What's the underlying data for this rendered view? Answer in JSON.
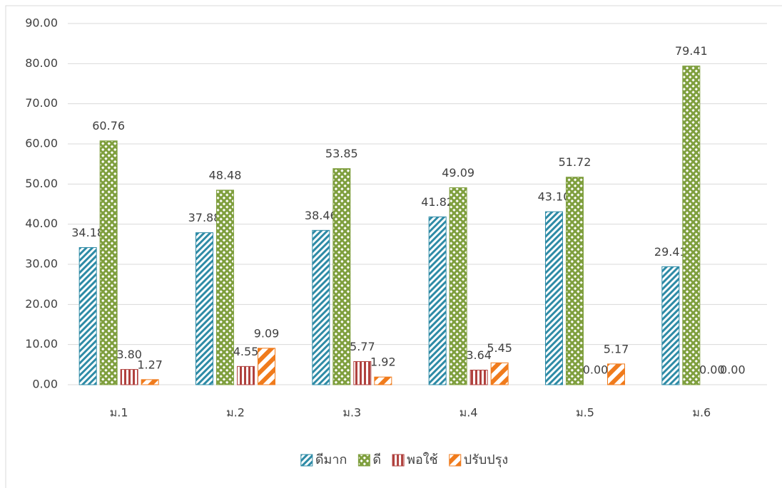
{
  "chart_data": {
    "type": "bar",
    "categories": [
      "ม.1",
      "ม.2",
      "ม.3",
      "ม.4",
      "ม.5",
      "ม.6"
    ],
    "series": [
      {
        "name": "ดีมาก",
        "color": "#2e8ba6",
        "values": [
          34.18,
          37.88,
          38.46,
          41.82,
          43.1,
          29.41
        ],
        "value_labels": [
          "34.18",
          "37.88",
          "38.46",
          "41.82",
          "43.10",
          "29.41"
        ]
      },
      {
        "name": "ดี",
        "color": "#7f9f3e",
        "values": [
          60.76,
          48.48,
          53.85,
          49.09,
          51.72,
          79.41
        ],
        "value_labels": [
          "60.76",
          "48.48",
          "53.85",
          "49.09",
          "51.72",
          "79.41"
        ]
      },
      {
        "name": "พอใช้",
        "color": "#b0413e",
        "values": [
          3.8,
          4.55,
          5.77,
          3.64,
          0,
          0
        ],
        "value_labels": [
          "3.80",
          "4.55",
          "5.77",
          "3.64",
          "0.00",
          "0.00"
        ]
      },
      {
        "name": "ปรับปรุง",
        "color": "#f07b1c",
        "values": [
          1.27,
          9.09,
          1.92,
          5.45,
          5.17,
          0
        ],
        "value_labels": [
          "1.27",
          "9.09",
          "1.92",
          "5.45",
          "5.17",
          "0.00"
        ]
      }
    ],
    "ylim": [
      0,
      90
    ],
    "yticks": [
      {
        "value": 0,
        "label": "0.00"
      },
      {
        "value": 10,
        "label": "10.00"
      },
      {
        "value": 20,
        "label": "20.00"
      },
      {
        "value": 30,
        "label": "30.00"
      },
      {
        "value": 40,
        "label": "40.00"
      },
      {
        "value": 50,
        "label": "50.00"
      },
      {
        "value": 60,
        "label": "60.00"
      },
      {
        "value": 70,
        "label": "70.00"
      },
      {
        "value": 80,
        "label": "80.00"
      },
      {
        "value": 90,
        "label": "90.00"
      }
    ],
    "grid": true,
    "legend": "bottom"
  }
}
